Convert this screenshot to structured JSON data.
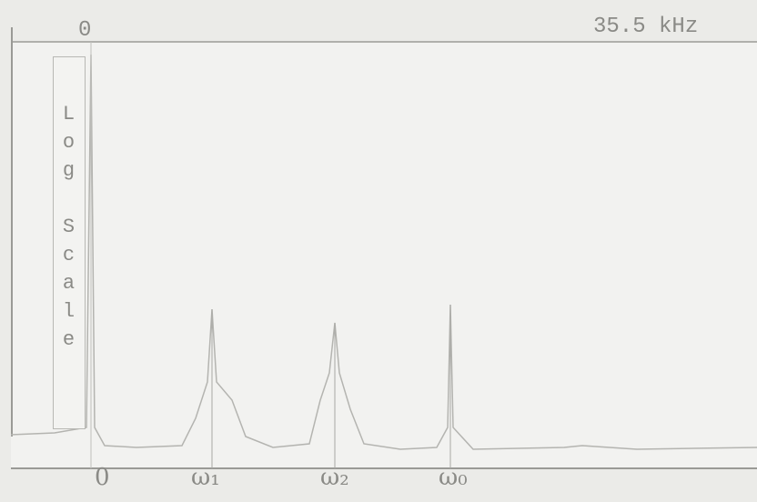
{
  "header": {
    "left": "0",
    "right": "35.5 kHz"
  },
  "side_label": "Log Scale",
  "x_labels": [
    "0",
    "ω₁",
    "ω₂",
    "ω₀"
  ]
}
